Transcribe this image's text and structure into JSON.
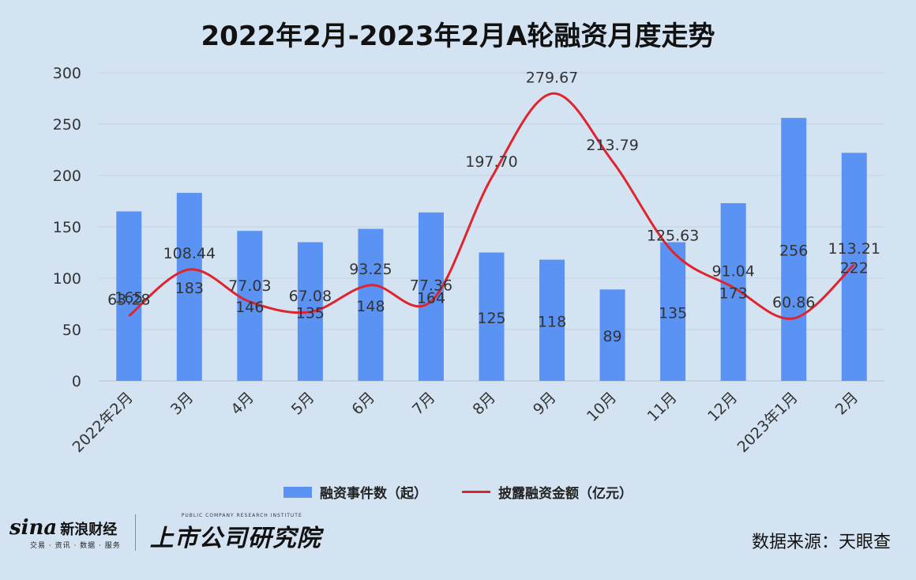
{
  "chart_data": {
    "type": "bar",
    "title": "2022年2月-2023年2月A轮融资月度走势",
    "categories": [
      "2022年2月",
      "3月",
      "4月",
      "5月",
      "6月",
      "7月",
      "8月",
      "9月",
      "10月",
      "11月",
      "12月",
      "2023年1月",
      "2月"
    ],
    "series": [
      {
        "name": "融资事件数（起）",
        "type": "bar",
        "color": "#5b93f5",
        "values": [
          165,
          183,
          146,
          135,
          148,
          164,
          125,
          118,
          89,
          135,
          173,
          256,
          222
        ],
        "labels": [
          "165",
          "183",
          "146",
          "135",
          "148",
          "164",
          "125",
          "118",
          "89",
          "135",
          "173",
          "256",
          "222"
        ]
      },
      {
        "name": "披露融资金额（亿元）",
        "type": "line",
        "smooth": true,
        "color": "#e0242d",
        "values": [
          63.28,
          108.44,
          77.03,
          67.08,
          93.25,
          77.36,
          197.7,
          279.67,
          213.79,
          125.63,
          91.04,
          60.86,
          113.21
        ],
        "labels": [
          "63.28",
          "108.44",
          "77.03",
          "67.08",
          "93.25",
          "77.36",
          "197.70",
          "279.67",
          "213.79",
          "125.63",
          "91.04",
          "60.86",
          "113.21"
        ]
      }
    ],
    "ylim": [
      0,
      300
    ],
    "yticks": [
      "0",
      "50",
      "100",
      "150",
      "200",
      "250",
      "300"
    ],
    "grid": true,
    "legend_position": "bottom"
  },
  "footer": {
    "sina_word": "sina",
    "sina_brand": "新浪财经",
    "sina_sub": "交易 · 资讯 · 数据 · 服务",
    "research_en": "PUBLIC COMPANY RESEARCH INSTITUTE",
    "research_cn": "上市公司研究院",
    "source": "数据来源：天眼查"
  }
}
